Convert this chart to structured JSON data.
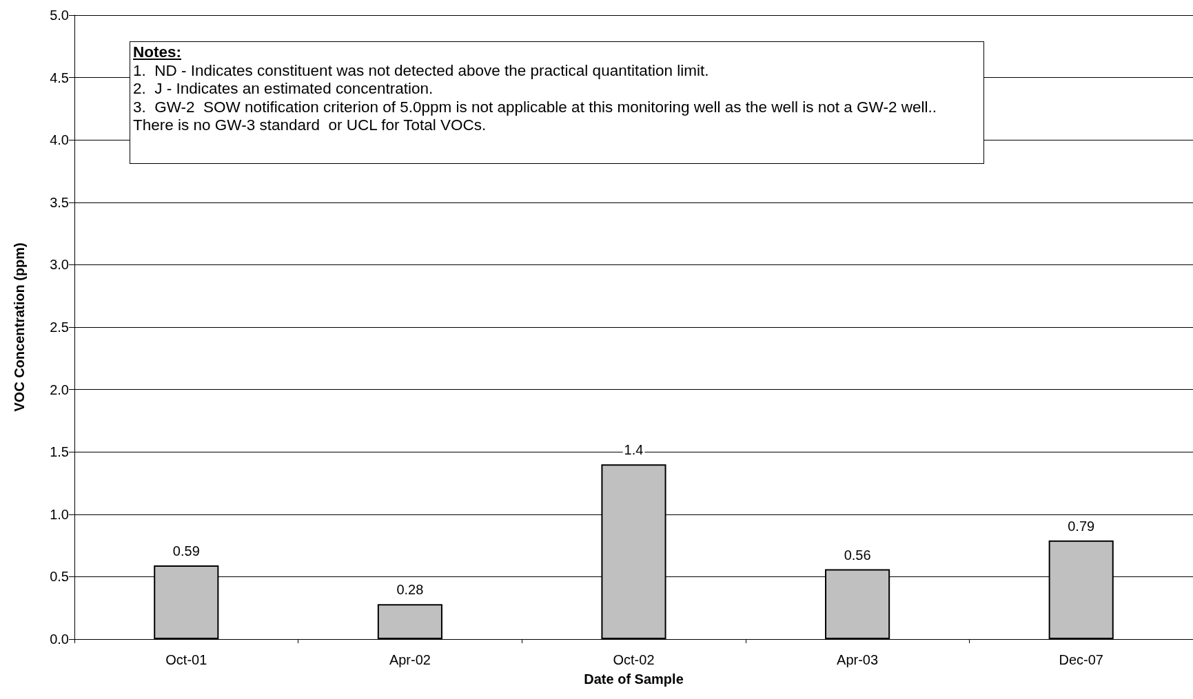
{
  "chart_data": {
    "type": "bar",
    "xlabel": "Date of Sample",
    "ylabel": "VOC Concentration (ppm)",
    "categories": [
      "Oct-01",
      "Apr-02",
      "Oct-02",
      "Apr-03",
      "Dec-07"
    ],
    "values": [
      0.59,
      0.28,
      1.4,
      0.56,
      0.79
    ],
    "color": "#c0c0c0",
    "ylim": [
      0,
      5
    ],
    "yticks": [
      {
        "value": 0,
        "label": "0.0"
      },
      {
        "value": 0.5,
        "label": "0.5"
      },
      {
        "value": 1,
        "label": "1.0"
      },
      {
        "value": 1.5,
        "label": "1.5"
      },
      {
        "value": 2,
        "label": "2.0"
      },
      {
        "value": 2.5,
        "label": "2.5"
      },
      {
        "value": 3,
        "label": "3.0"
      },
      {
        "value": 3.5,
        "label": "3.5"
      },
      {
        "value": 4,
        "label": "4.0"
      },
      {
        "value": 4.5,
        "label": "4.5"
      },
      {
        "value": 5,
        "label": "5.0"
      }
    ],
    "grid": "y",
    "data_labels": true,
    "annotations": [
      "Notes:",
      "1.  ND - Indicates constituent was not detected above the practical quantitation limit.",
      "2.  J - Indicates an estimated concentration.",
      "3.  GW-2  SOW notification criterion of 5.0ppm is not applicable at this monitoring well as the well is not a GW-2 well..",
      "There is no GW-3 standard  or UCL for Total VOCs."
    ]
  }
}
